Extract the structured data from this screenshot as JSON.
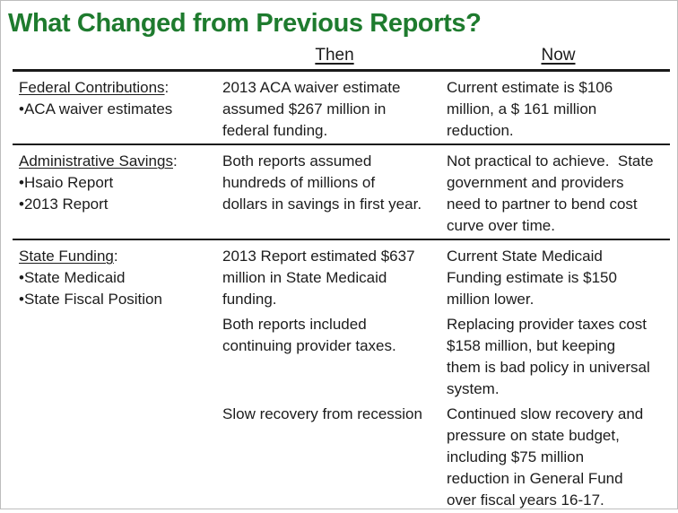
{
  "title": "What Changed from Previous Reports?",
  "colors": {
    "title_green": "#1e7b2e",
    "text": "#1c1c1c",
    "rule": "#1a1a1a",
    "background": "#ffffff"
  },
  "columns": {
    "then": "Then",
    "now": "Now"
  },
  "rows": [
    {
      "heading": "Federal Contributions",
      "colon": ":",
      "bullets": [
        "•ACA waiver estimates"
      ],
      "then": [
        "2013 ACA waiver estimate\nassumed $267 million in\nfederal funding."
      ],
      "now": [
        "Current estimate is $106\nmillion, a $ 161 million\nreduction."
      ]
    },
    {
      "heading": "Administrative Savings",
      "colon": ":",
      "bullets": [
        "•Hsaio Report",
        "•2013 Report"
      ],
      "then": [
        "Both reports assumed\nhundreds of millions of\ndollars in savings in first year."
      ],
      "now": [
        "Not practical to achieve.  State\ngovernment and providers\nneed to partner to bend cost\ncurve over time."
      ]
    },
    {
      "heading": "State Funding",
      "colon": ":",
      "bullets": [
        "•State Medicaid",
        "•State Fiscal Position"
      ],
      "then": [
        "2013 Report estimated $637\nmillion in State Medicaid\nfunding.",
        "Both reports included\ncontinuing provider taxes.",
        "Slow recovery from recession"
      ],
      "now": [
        "Current State Medicaid\nFunding estimate is $150\nmillion lower.",
        "Replacing provider taxes cost\n$158 million, but keeping\nthem is bad policy in universal\nsystem.",
        "Continued slow recovery and\npressure on state budget,\nincluding $75 million\nreduction in General Fund\nover fiscal years 16-17."
      ]
    }
  ]
}
